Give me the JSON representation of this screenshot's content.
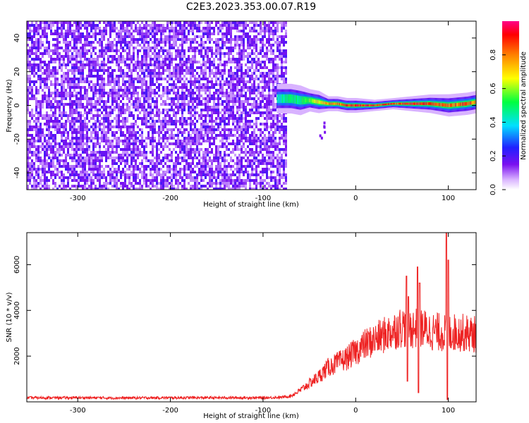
{
  "title": "C2E3.2023.353.00.07.R19",
  "colors": {
    "snr_line": "#ee2222",
    "axis": "#000000"
  },
  "chart_data": [
    {
      "type": "heatmap",
      "xlabel": "Height of straight line (km)",
      "ylabel": "Frequency (Hz)",
      "xlim": [
        -355,
        130
      ],
      "ylim": [
        -50,
        50
      ],
      "xticks": [
        -300,
        -200,
        -100,
        0,
        100
      ],
      "yticks": [
        -40,
        -20,
        0,
        20,
        40
      ],
      "xtick_labels": [
        "-300",
        "-200",
        "-100",
        "0",
        "100"
      ],
      "ytick_labels": [
        "-40",
        "-20",
        "0",
        "20",
        "40"
      ],
      "noise_region_x": [
        -355,
        -75
      ],
      "signal_band": {
        "x": [
          -85,
          -70,
          -60,
          -50,
          -40,
          -30,
          -20,
          -10,
          0,
          20,
          40,
          60,
          80,
          100,
          120,
          130
        ],
        "center_hz": [
          4,
          4,
          3,
          3,
          2,
          1,
          1,
          0,
          0,
          0,
          1,
          1,
          1,
          0,
          1,
          2
        ],
        "halfwidth_hz": [
          4,
          4,
          4,
          3,
          3,
          2,
          2,
          2,
          2,
          1.5,
          1.5,
          2,
          2.5,
          3,
          3,
          3
        ],
        "peak_amplitude": [
          0.45,
          0.5,
          0.5,
          0.6,
          0.7,
          0.8,
          0.85,
          0.9,
          0.95,
          0.95,
          0.9,
          0.95,
          0.9,
          0.85,
          0.9,
          0.85
        ]
      },
      "colorbar": {
        "label": "Normalized spectral amplitude",
        "range": [
          0,
          1
        ],
        "ticks": [
          0,
          0.2,
          0.4,
          0.6,
          0.8
        ],
        "tick_labels": [
          "0.0",
          "0.2",
          "0.4",
          "0.6",
          "0.8"
        ]
      }
    },
    {
      "type": "line",
      "xlabel": "Height of straight line (km)",
      "ylabel": "SNR (10 * v/v)",
      "xlim": [
        -355,
        130
      ],
      "ylim": [
        0,
        7400
      ],
      "xticks": [
        -300,
        -200,
        -100,
        0,
        100
      ],
      "yticks": [
        2000,
        4000,
        6000
      ],
      "xtick_labels": [
        "-300",
        "-200",
        "-100",
        "0",
        "100"
      ],
      "ytick_labels": [
        "2000",
        "4000",
        "6000"
      ],
      "series": [
        {
          "x": [
            -355,
            -300,
            -250,
            -200,
            -150,
            -100,
            -80,
            -70,
            -60,
            -50,
            -40,
            -30,
            -20,
            -10,
            0,
            10,
            20,
            30,
            40,
            50,
            60,
            70,
            80,
            90,
            100,
            110,
            120,
            130
          ],
          "y": [
            180,
            180,
            170,
            180,
            180,
            180,
            200,
            260,
            500,
            800,
            1100,
            1500,
            1700,
            1900,
            2200,
            2500,
            2700,
            2900,
            3100,
            3300,
            3200,
            3250,
            3100,
            3050,
            3000,
            3050,
            3000,
            2950
          ],
          "spikes": [
            {
              "x": 55,
              "y": 5500
            },
            {
              "x": 57,
              "y": 4600
            },
            {
              "x": 67,
              "y": 5900
            },
            {
              "x": 69,
              "y": 5200
            },
            {
              "x": 98,
              "y": 7400
            },
            {
              "x": 100,
              "y": 6200
            },
            {
              "x": 56,
              "y": 900
            },
            {
              "x": 68,
              "y": 400
            },
            {
              "x": 99,
              "y": 100
            }
          ]
        }
      ]
    }
  ]
}
